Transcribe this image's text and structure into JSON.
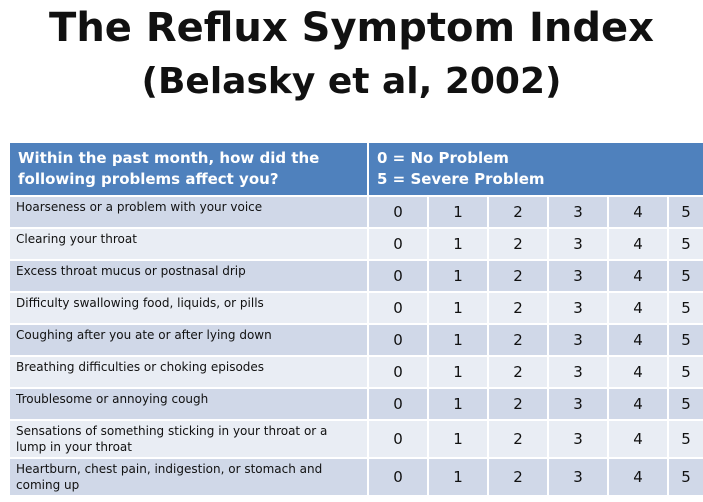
{
  "title": "The Reflux Symptom Index",
  "subtitle": "(Belasky et al, 2002)",
  "colors": {
    "header_bg": "#4f81bd",
    "row_dark": "#d0d8e8",
    "row_light": "#e9edf4"
  },
  "table": {
    "header": {
      "question_line1": "Within the past month, how did the",
      "question_line2": "following problems affect you?",
      "scale_line1": "0 = No Problem",
      "scale_line2": "5 = Severe Problem"
    },
    "scores": [
      "0",
      "1",
      "2",
      "3",
      "4",
      "5"
    ],
    "rows": [
      "Hoarseness or a problem with your voice",
      "Clearing your throat",
      "Excess throat mucus or postnasal drip",
      "Difficulty swallowing food, liquids, or pills",
      "Coughing after you ate or after lying down",
      "Breathing difficulties or choking episodes",
      "Troublesome or annoying cough",
      "Sensations of something sticking in your throat or a lump in your throat",
      "Heartburn, chest pain, indigestion, or stomach and coming up"
    ]
  }
}
